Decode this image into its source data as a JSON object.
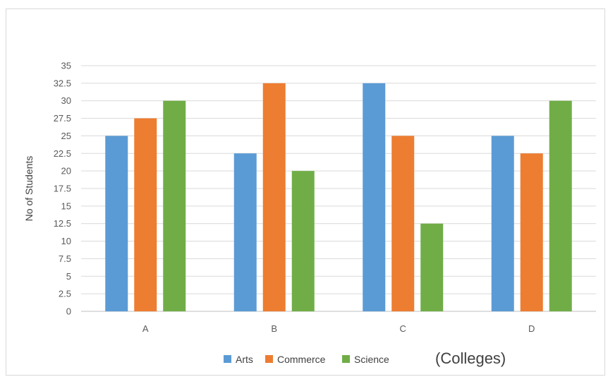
{
  "chart_data": {
    "type": "bar",
    "categories": [
      "A",
      "B",
      "C",
      "D"
    ],
    "series": [
      {
        "name": "Arts",
        "color": "#5b9bd5",
        "values": [
          25,
          22.5,
          32.5,
          25
        ]
      },
      {
        "name": "Commerce",
        "color": "#ed7d31",
        "values": [
          27.5,
          32.5,
          25,
          22.5
        ]
      },
      {
        "name": "Science",
        "color": "#70ad47",
        "values": [
          30,
          20,
          12.5,
          30
        ]
      }
    ],
    "ylabel": "No of Students",
    "xlabel": "(Colleges)",
    "ylim": [
      0,
      35
    ],
    "yticks": [
      "0",
      "2.5",
      "5",
      "7.5",
      "10",
      "12.5",
      "15",
      "17.5",
      "20",
      "22.5",
      "25",
      "27.5",
      "30",
      "32.5",
      "35"
    ],
    "grid": true,
    "legend_position": "bottom"
  }
}
